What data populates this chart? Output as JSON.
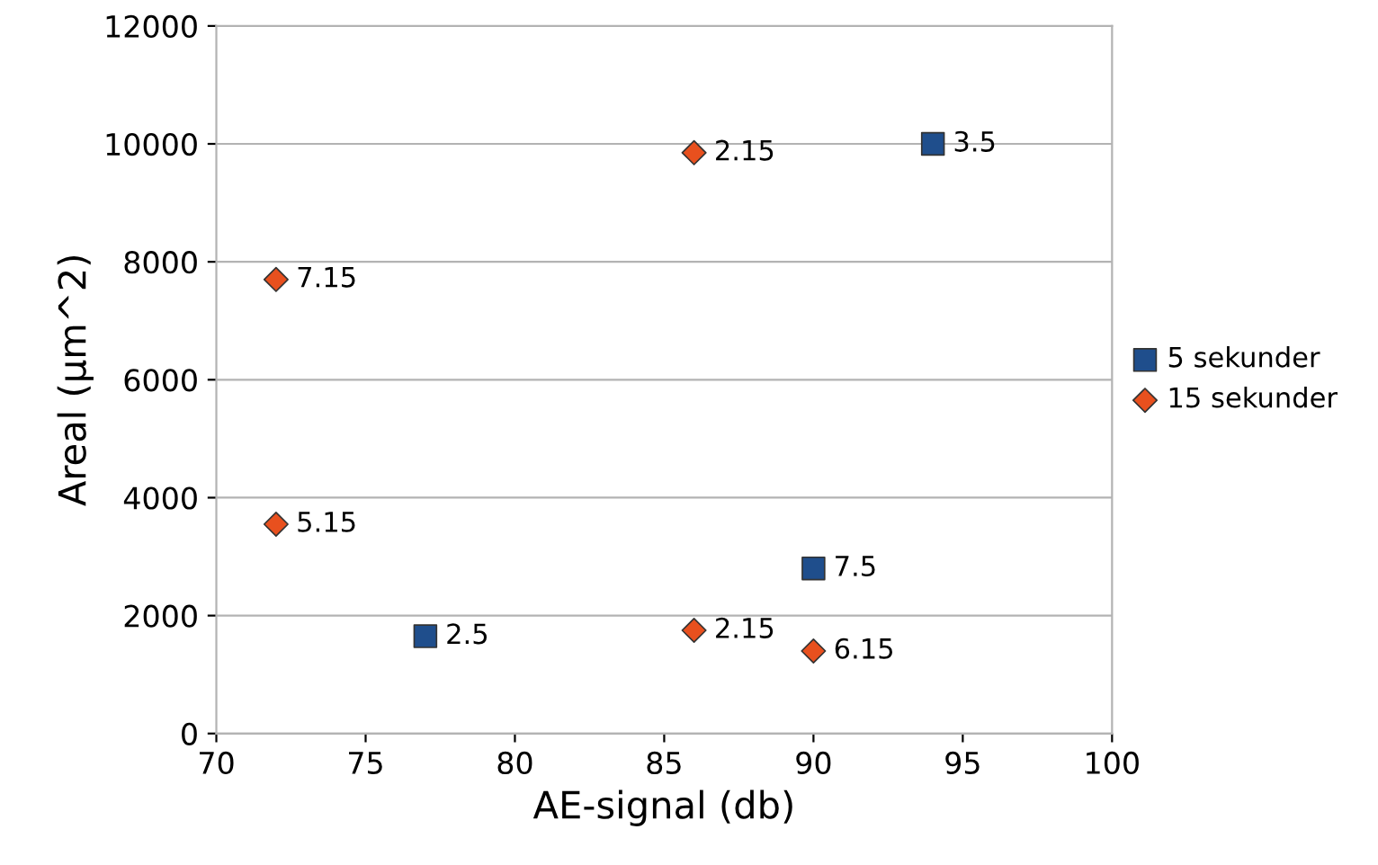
{
  "chart_data": {
    "type": "scatter",
    "xlabel": "AE-signal (db)",
    "ylabel": "Areal (µm^2)",
    "xlim": [
      70,
      100
    ],
    "xticks": [
      70,
      75,
      80,
      85,
      90,
      95,
      100
    ],
    "ylim": [
      0,
      12000
    ],
    "yticks": [
      0,
      2000,
      4000,
      6000,
      8000,
      10000,
      12000
    ],
    "grid": "y",
    "legend": "right",
    "series": [
      {
        "name": "5 sekunder",
        "color": "#1f4e8c",
        "marker": "square",
        "x": [
          77,
          90,
          94
        ],
        "values": [
          1650,
          2800,
          10000
        ]
      },
      {
        "name": "15 sekunder",
        "color": "#e8501e",
        "marker": "diamond",
        "x": [
          72,
          72,
          86,
          86,
          90
        ],
        "values": [
          7700,
          3550,
          9850,
          1750,
          1400
        ]
      }
    ],
    "annotations": [
      {
        "text": "2.5",
        "x": 77,
        "y": 1650
      },
      {
        "text": "7.5",
        "x": 90,
        "y": 2800
      },
      {
        "text": "3.5",
        "x": 94,
        "y": 10000
      },
      {
        "text": "7.15",
        "x": 72,
        "y": 7700
      },
      {
        "text": "5.15",
        "x": 72,
        "y": 3550
      },
      {
        "text": "2.15",
        "x": 86,
        "y": 9850
      },
      {
        "text": "2.15",
        "x": 86,
        "y": 1750
      },
      {
        "text": "6.15",
        "x": 90,
        "y": 1400
      }
    ]
  }
}
